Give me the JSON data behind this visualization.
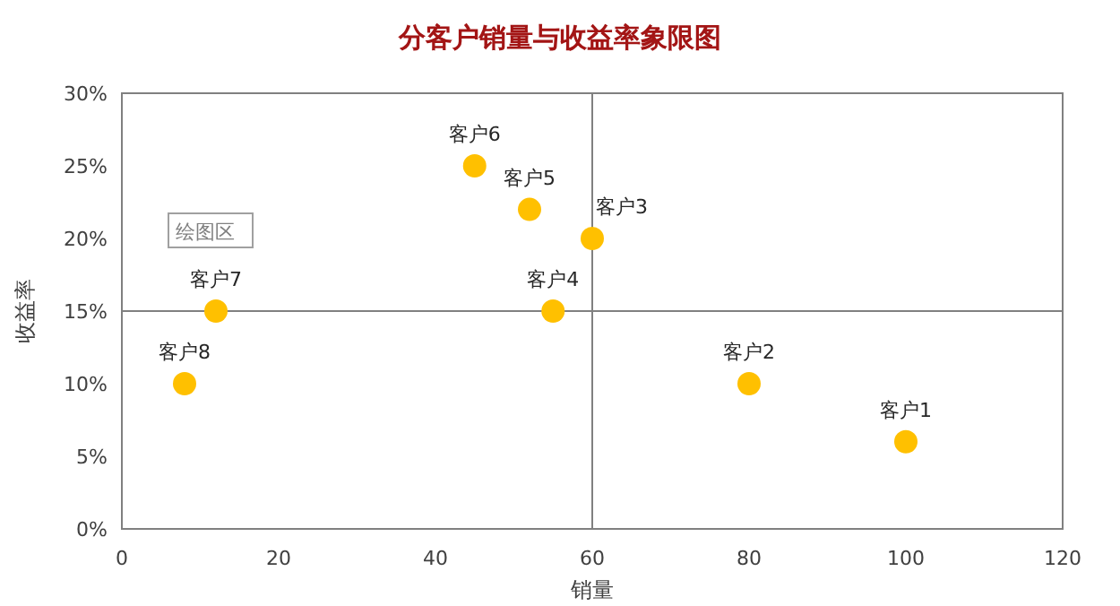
{
  "chart_data": {
    "type": "scatter",
    "title": "分客户销量与收益率象限图",
    "xlabel": "销量",
    "ylabel": "收益率",
    "x": [
      100,
      80,
      60,
      55,
      52,
      45,
      12,
      8
    ],
    "series": [
      {
        "color": "#ffc000",
        "values": [
          6,
          10,
          20,
          15,
          22,
          25,
          15,
          10
        ]
      }
    ],
    "marker": "circle",
    "xlim": [
      0,
      120
    ],
    "xticks": [
      0,
      20,
      40,
      60,
      80,
      100,
      120
    ],
    "ylim": [
      0,
      30
    ],
    "yticks": [
      {
        "value": 0,
        "label": "0%"
      },
      {
        "value": 5,
        "label": "5%"
      },
      {
        "value": 10,
        "label": "10%"
      },
      {
        "value": 15,
        "label": "15%"
      },
      {
        "value": 20,
        "label": "20%"
      },
      {
        "value": 25,
        "label": "25%"
      },
      {
        "value": 30,
        "label": "30%"
      }
    ],
    "ref_lines": [
      {
        "axis": "x",
        "value": 60,
        "color": "#808080"
      },
      {
        "axis": "y",
        "value": 15,
        "color": "#808080"
      }
    ],
    "annotations": [
      {
        "text": "客户1",
        "x": 100,
        "y": 6
      },
      {
        "text": "客户2",
        "x": 80,
        "y": 10
      },
      {
        "text": "客户3",
        "x": 60,
        "y": 20
      },
      {
        "text": "客户4",
        "x": 55,
        "y": 15
      },
      {
        "text": "客户5",
        "x": 52,
        "y": 22
      },
      {
        "text": "客户6",
        "x": 45,
        "y": 25
      },
      {
        "text": "客户7",
        "x": 12,
        "y": 15
      },
      {
        "text": "客户8",
        "x": 8,
        "y": 10
      },
      "绘图区"
    ],
    "grid": false
  }
}
